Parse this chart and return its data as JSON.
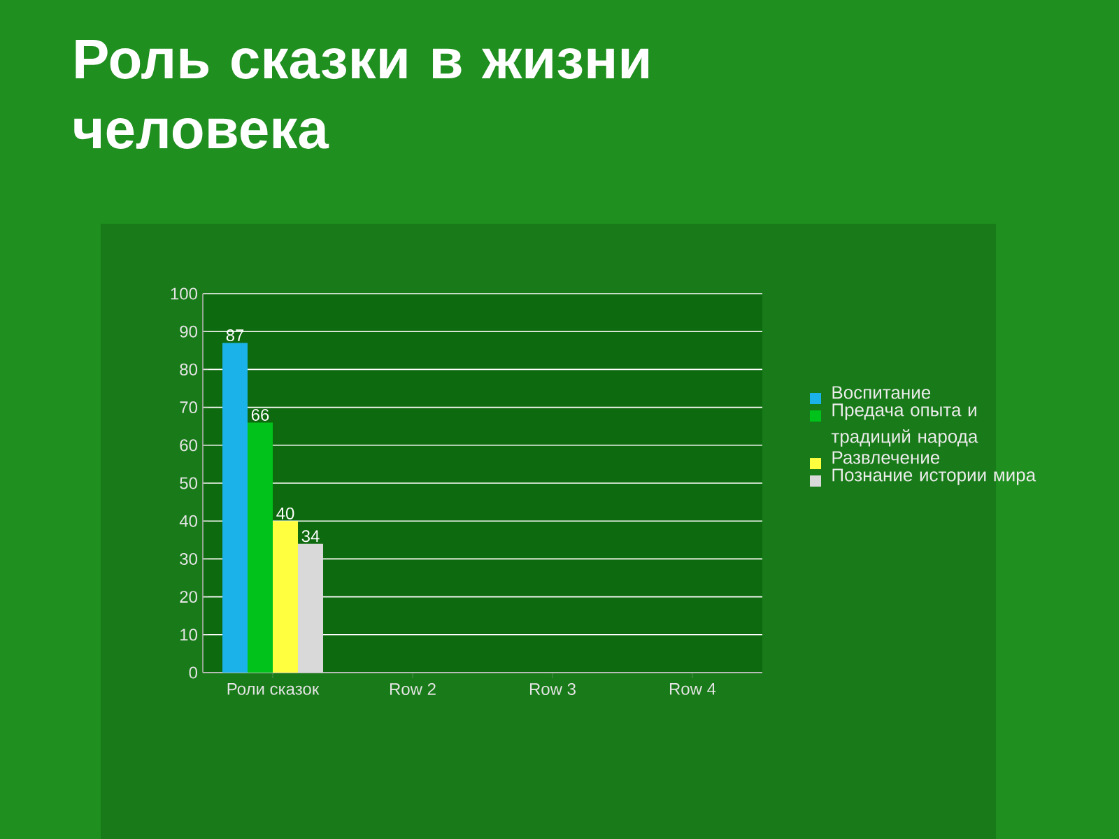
{
  "chart_data": {
    "type": "bar",
    "title": "Роль сказки в жизни человека",
    "categories": [
      "Роли сказок",
      "Row 2",
      "Row 3",
      "Row 4"
    ],
    "series": [
      {
        "name": "Воспитание",
        "color": "#1ab2e8",
        "values": [
          87,
          null,
          null,
          null
        ]
      },
      {
        "name": "Предача опыта и традиций народа",
        "color": "#00c21a",
        "values": [
          66,
          null,
          null,
          null
        ]
      },
      {
        "name": "Развлечение",
        "color": "#ffff40",
        "values": [
          40,
          null,
          null,
          null
        ]
      },
      {
        "name": "Познание истории мира",
        "color": "#d9d9d9",
        "values": [
          34,
          null,
          null,
          null
        ]
      }
    ],
    "ylim": [
      0,
      100
    ],
    "yticks": [
      0,
      10,
      20,
      30,
      40,
      50,
      60,
      70,
      80,
      90,
      100
    ],
    "grid": "y",
    "legend": "right",
    "data_labels": true
  }
}
